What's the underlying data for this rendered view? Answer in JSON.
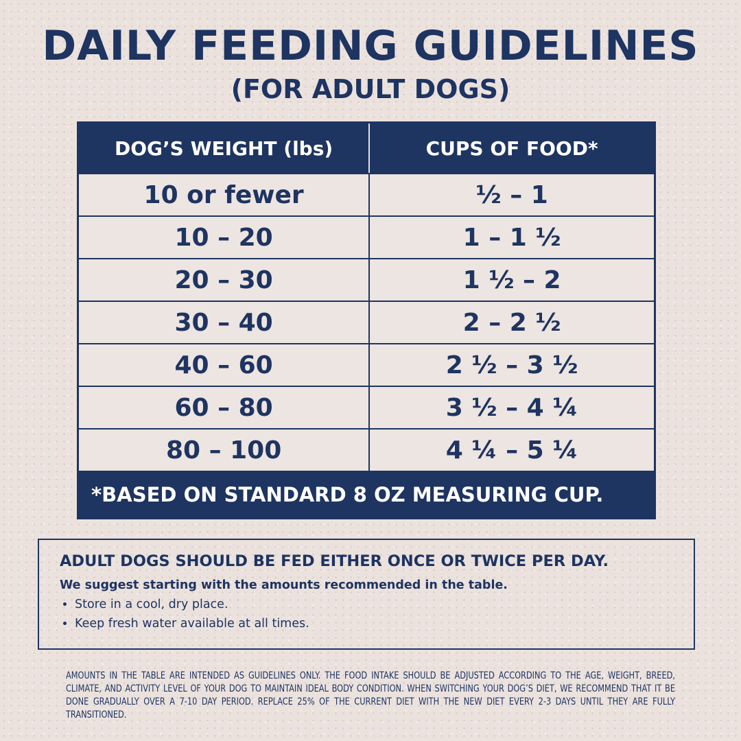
{
  "header": {
    "title": "DAILY FEEDING GUIDELINES",
    "subtitle": "(FOR ADULT DOGS)"
  },
  "table": {
    "headers": [
      "DOG’S WEIGHT (lbs)",
      "CUPS OF FOOD*"
    ],
    "rows": [
      [
        "10 or fewer",
        "½ – 1"
      ],
      [
        "10 – 20",
        "1 – 1 ½"
      ],
      [
        "20 – 30",
        "1 ½ – 2"
      ],
      [
        "30 – 40",
        "2 – 2 ½"
      ],
      [
        "40 – 60",
        "2 ½ – 3 ½"
      ],
      [
        "60 – 80",
        "3 ½ – 4 ¼"
      ],
      [
        "80 – 100",
        "4 ¼ – 5 ¼"
      ]
    ],
    "footnote": "*BASED ON STANDARD 8 OZ MEASURING CUP."
  },
  "note": {
    "heading": "ADULT DOGS SHOULD BE FED EITHER ONCE OR TWICE PER DAY.",
    "subheading": "We suggest starting with the amounts recommended in the table.",
    "bullets": [
      "Store in a cool, dry place.",
      "Keep fresh water available at all times."
    ]
  },
  "disclaimer": "AMOUNTS IN THE TABLE ARE INTENDED AS GUIDELINES ONLY. THE FOOD INTAKE SHOULD BE ADJUSTED ACCORDING TO THE AGE, WEIGHT, BREED, CLIMATE, AND ACTIVITY LEVEL OF YOUR DOG TO MAINTAIN IDEAL BODY CONDITION. WHEN SWITCHING YOUR DOG’S DIET, WE RECOMMEND THAT IT BE DONE GRADUALLY OVER A 7-10 DAY PERIOD. REPLACE 25% OF THE CURRENT DIET WITH THE NEW DIET EVERY 2-3 DAYS UNTIL THEY ARE FULLY TRANSITIONED."
}
